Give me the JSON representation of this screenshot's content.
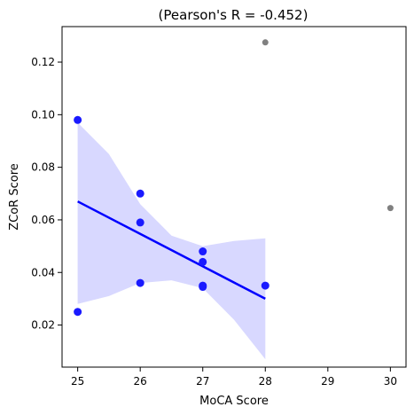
{
  "chart_data": {
    "type": "scatter",
    "title": "(Pearson's R = -0.452)",
    "xlabel": "MoCA Score",
    "ylabel": "ZCoR Score",
    "xlim": [
      24.75,
      30.25
    ],
    "ylim": [
      0.004,
      0.1335
    ],
    "x_ticks": [
      25,
      26,
      27,
      28,
      29,
      30
    ],
    "x_tick_labels": [
      "25",
      "26",
      "27",
      "28",
      "29",
      "30"
    ],
    "y_ticks": [
      0.02,
      0.04,
      0.06,
      0.08,
      0.1,
      0.12
    ],
    "y_tick_labels": [
      "0.02",
      "0.04",
      "0.06",
      "0.08",
      "0.10",
      "0.12"
    ],
    "grid": false,
    "series": [
      {
        "color": "#1a1aff",
        "points": [
          {
            "x": 25,
            "y": 0.098
          },
          {
            "x": 25,
            "y": 0.025
          },
          {
            "x": 26,
            "y": 0.07
          },
          {
            "x": 26,
            "y": 0.059
          },
          {
            "x": 26,
            "y": 0.036
          },
          {
            "x": 27,
            "y": 0.048
          },
          {
            "x": 27,
            "y": 0.044
          },
          {
            "x": 27,
            "y": 0.035
          },
          {
            "x": 27,
            "y": 0.0345
          },
          {
            "x": 28,
            "y": 0.035
          }
        ]
      },
      {
        "color": "#808080",
        "points": [
          {
            "x": 28,
            "y": 0.1275
          },
          {
            "x": 30,
            "y": 0.0645
          }
        ]
      }
    ],
    "regression": {
      "color": "#0000ff",
      "x_range": [
        25,
        28
      ],
      "y_start": 0.067,
      "y_end": 0.03
    },
    "confidence_band": {
      "color": "#d8d8ff",
      "x": [
        25,
        25.5,
        26,
        26.5,
        27,
        27.5,
        28
      ],
      "upper": [
        0.097,
        0.085,
        0.066,
        0.054,
        0.05,
        0.052,
        0.053
      ],
      "lower": [
        0.028,
        0.031,
        0.036,
        0.037,
        0.034,
        0.022,
        0.007
      ]
    }
  }
}
